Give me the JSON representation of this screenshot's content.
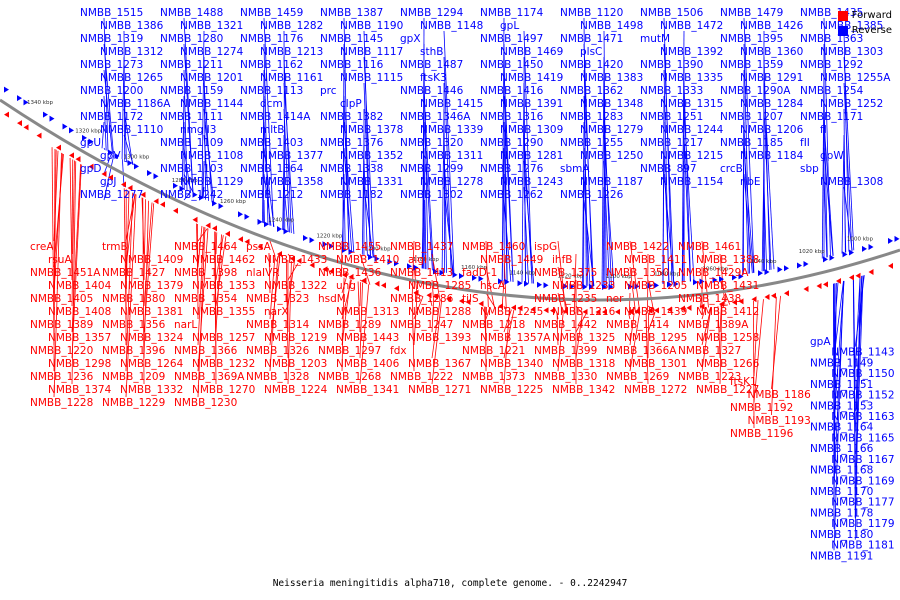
{
  "caption": "Neisseria meningitidis alpha710, complete genome. - 0..2242947",
  "legend": [
    {
      "label": "Forward",
      "color": "#ff0000"
    },
    {
      "label": "Reverse",
      "color": "#0000ff"
    }
  ],
  "colors": {
    "forward": "#ff0000",
    "reverse": "#0000ff",
    "backbone": "#888888"
  },
  "ticks": [
    "1340 kbp",
    "1320 kbp",
    "1300 kbp",
    "1280 kbp",
    "1260 kbp",
    "1240 kbp",
    "1220 kbp",
    "1200 kbp",
    "1180 kbp",
    "1160 kbp",
    "1140 kbp",
    "1120 kbp",
    "1100 kbp",
    "1080 kbp",
    "1060 kbp",
    "1040 kbp",
    "1020 kbp",
    "1000 kbp"
  ],
  "reverse_labels": [
    "NMBB_1515",
    "NMBB_1488",
    "NMBB_1459",
    "NMBB_1387",
    "NMBB_1294",
    "NMBB_1174",
    "NMBB_1120",
    "NMBB_1506",
    "NMBB_1479",
    "NMBB_1435",
    "NMBB_1386",
    "NMBB_1321",
    "NMBB_1282",
    "NMBB_1190",
    "NMBB_1148",
    "gpL",
    "NMBB_1498",
    "NMBB_1472",
    "NMBB_1426",
    "NMBB_1385",
    "NMBB_1319",
    "NMBB_1280",
    "NMBB_1176",
    "NMBB_1145",
    "gpX",
    "NMBB_1497",
    "NMBB_1471",
    "mutM",
    "NMBB_1395",
    "NMBB_1363",
    "NMBB_1312",
    "NMBB_1274",
    "NMBB_1213",
    "NMBB_1117",
    "sthB",
    "NMBB_1469",
    "plsC",
    "NMBB_1392",
    "NMBB_1360",
    "NMBB_1303",
    "NMBB_1273",
    "NMBB_1211",
    "NMBB_1162",
    "NMBB_1116",
    "NMBB_1487",
    "NMBB_1450",
    "NMBB_1420",
    "NMBB_1390",
    "NMBB_1359",
    "NMBB_1292",
    "NMBB_1265",
    "NMBB_1201",
    "NMBB_1161",
    "NMBB_1115",
    "ftsK3",
    "NMBB_1419",
    "NMBB_1383",
    "NMBB_1335",
    "NMBB_1291",
    "NMBB_1255A",
    "NMBB_1200",
    "NMBB_1159",
    "NMBB_1113",
    "prc",
    "NMBB_1446",
    "NMBB_1416",
    "NMBB_1362",
    "NMBB_1333",
    "NMBB_1290A",
    "NMBB_1254",
    "NMBB_1186A",
    "NMBB_1144",
    "dcm",
    "clpP",
    "NMBB_1415",
    "NMBB_1391",
    "NMBB_1348",
    "NMBB_1315",
    "NMBB_1284",
    "NMBB_1252",
    "NMBB_1172",
    "NMBB_1111",
    "NMBB_1414A",
    "NMBB_1382",
    "NMBB_1346A",
    "NMBB_1316",
    "NMBB_1283",
    "NMBB_1251",
    "NMBB_1207",
    "NMBB_1171",
    "NMBB_1110",
    "nmgII3",
    "mltB",
    "NMBB_1378",
    "NMBB_1339",
    "NMBB_1309",
    "NMBB_1279",
    "NMBB_1244",
    "NMBB_1206",
    "fI",
    "gpU",
    "NMBB_1109",
    "NMBB_1403",
    "NMBB_1376",
    "NMBB_1320",
    "NMBB_1290",
    "NMBB_1255",
    "NMBB_1217",
    "NMBB_1185",
    "fII",
    "gpV",
    "NMBB_1108",
    "NMBB_1377",
    "NMBB_1352",
    "NMBB_1311",
    "NMBB_1281",
    "NMBB_1250",
    "NMBB_1215",
    "NMBB_1184",
    "gpW",
    "gpD",
    "NMBB_1103",
    "NMBB_1364",
    "NMBB_1338",
    "NMBB_1299",
    "NMBB_1276",
    "sbmA",
    "NMBB_897",
    "crcB",
    "sbp",
    "gpJ",
    "NMBB_1129",
    "NMBB_1358",
    "NMBB_1331",
    "NMBB_1278",
    "NMBB_1243",
    "NMBB_1187",
    "NMBB_1154",
    "ribE",
    "NMBB_1308",
    "NMBB_1277",
    "NMBB_1242",
    "NMBB_1212",
    "NMBB_1182",
    "NMBB_1302",
    "NMBB_1262",
    "NMBB_1226"
  ],
  "forward_labels": [
    "creA",
    "trmB",
    "NMBB_1464",
    "pssA",
    "NMBB_1455",
    "NMBB_1437",
    "NMBB_1460",
    "ispG",
    "NMBB_1422",
    "NMBB_1461",
    "rsuA",
    "NMBB_1409",
    "NMBB_1462",
    "NMBB_1433",
    "NMBB_1410",
    "algI",
    "NMBB_1449",
    "ihfB",
    "NMBB_1411",
    "NMBB_1388",
    "NMBB_1451A",
    "NMBB_1427",
    "NMBB_1398",
    "nlaIVR",
    "NMBB_1436",
    "NMBB_1413",
    "fadD-1",
    "NMBB_1375",
    "NMBB_1350",
    "NMBB_1429A",
    "NMBB_1404",
    "NMBB_1379",
    "NMBB_1353",
    "NMBB_1322",
    "ung",
    "NMBB_1285",
    "hscA",
    "NMBB_1233",
    "NMBB_1205",
    "NMBB_1431",
    "NMBB_1405",
    "NMBB_1380",
    "NMBB_1354",
    "NMBB_1323",
    "hsdM",
    "NMBB_1286",
    "tilS",
    "NMBB_1235",
    "ner",
    "NMBB_1438",
    "NMBB_1408",
    "NMBB_1381",
    "NMBB_1355",
    "narX",
    "NMBB_1313",
    "NMBB_1288",
    "NMBB_1245",
    "NMBB_1216",
    "NMBB_1439",
    "NMBB_1412",
    "NMBB_1389",
    "NMBB_1356",
    "narL",
    "NMBB_1314",
    "NMBB_1289",
    "NMBB_1247",
    "NMBB_1218",
    "NMBB_1442",
    "NMBB_1414",
    "NMBB_1389A",
    "NMBB_1357",
    "NMBB_1324",
    "NMBB_1257",
    "NMBB_1219",
    "NMBB_1443",
    "NMBB_1393",
    "NMBB_1357A",
    "NMBB_1325",
    "NMBB_1295",
    "NMBB_1258",
    "NMBB_1220",
    "NMBB_1396",
    "NMBB_1366",
    "NMBB_1326",
    "NMBB_1297",
    "fdx",
    "NMBB_1221",
    "NMBB_1399",
    "NMBB_1366A",
    "NMBB_1327",
    "NMBB_1298",
    "NMBB_1264",
    "NMBB_1232",
    "NMBB_1203",
    "NMBB_1406",
    "NMBB_1367",
    "NMBB_1340",
    "NMBB_1318",
    "NMBB_1301",
    "NMBB_1266",
    "NMBB_1236",
    "NMBB_1209",
    "NMBB_1369A",
    "NMBB_1328",
    "NMBB_1268",
    "NMBB_1222",
    "NMBB_1373",
    "NMBB_1330",
    "NMBB_1269",
    "NMBB_1223",
    "NMBB_1374",
    "NMBB_1332",
    "NMBB_1270",
    "NMBB_1224",
    "NMBB_1341",
    "NMBB_1271",
    "NMBB_1225",
    "NMBB_1342",
    "NMBB_1272",
    "NMBB_1227",
    "NMBB_1228",
    "NMBB_1229",
    "NMBB_1230"
  ],
  "right_forward_labels": [
    "ftsK1",
    "NMBB_1186",
    "NMBB_1192",
    "NMBB_1193",
    "NMBB_1196"
  ],
  "right_reverse_labels": [
    "gpA",
    "NMBB_1143",
    "NMBB_1149",
    "NMBB_1150",
    "NMBB_1151",
    "NMBB_1152",
    "NMBB_1153",
    "NMBB_1163",
    "NMBB_1164",
    "NMBB_1165",
    "NMBB_1166",
    "NMBB_1167",
    "NMBB_1168",
    "NMBB_1169",
    "NMBB_1170",
    "NMBB_1177",
    "NMBB_1178",
    "NMBB_1179",
    "NMBB_1180",
    "NMBB_1181",
    "NMBB_1191"
  ]
}
